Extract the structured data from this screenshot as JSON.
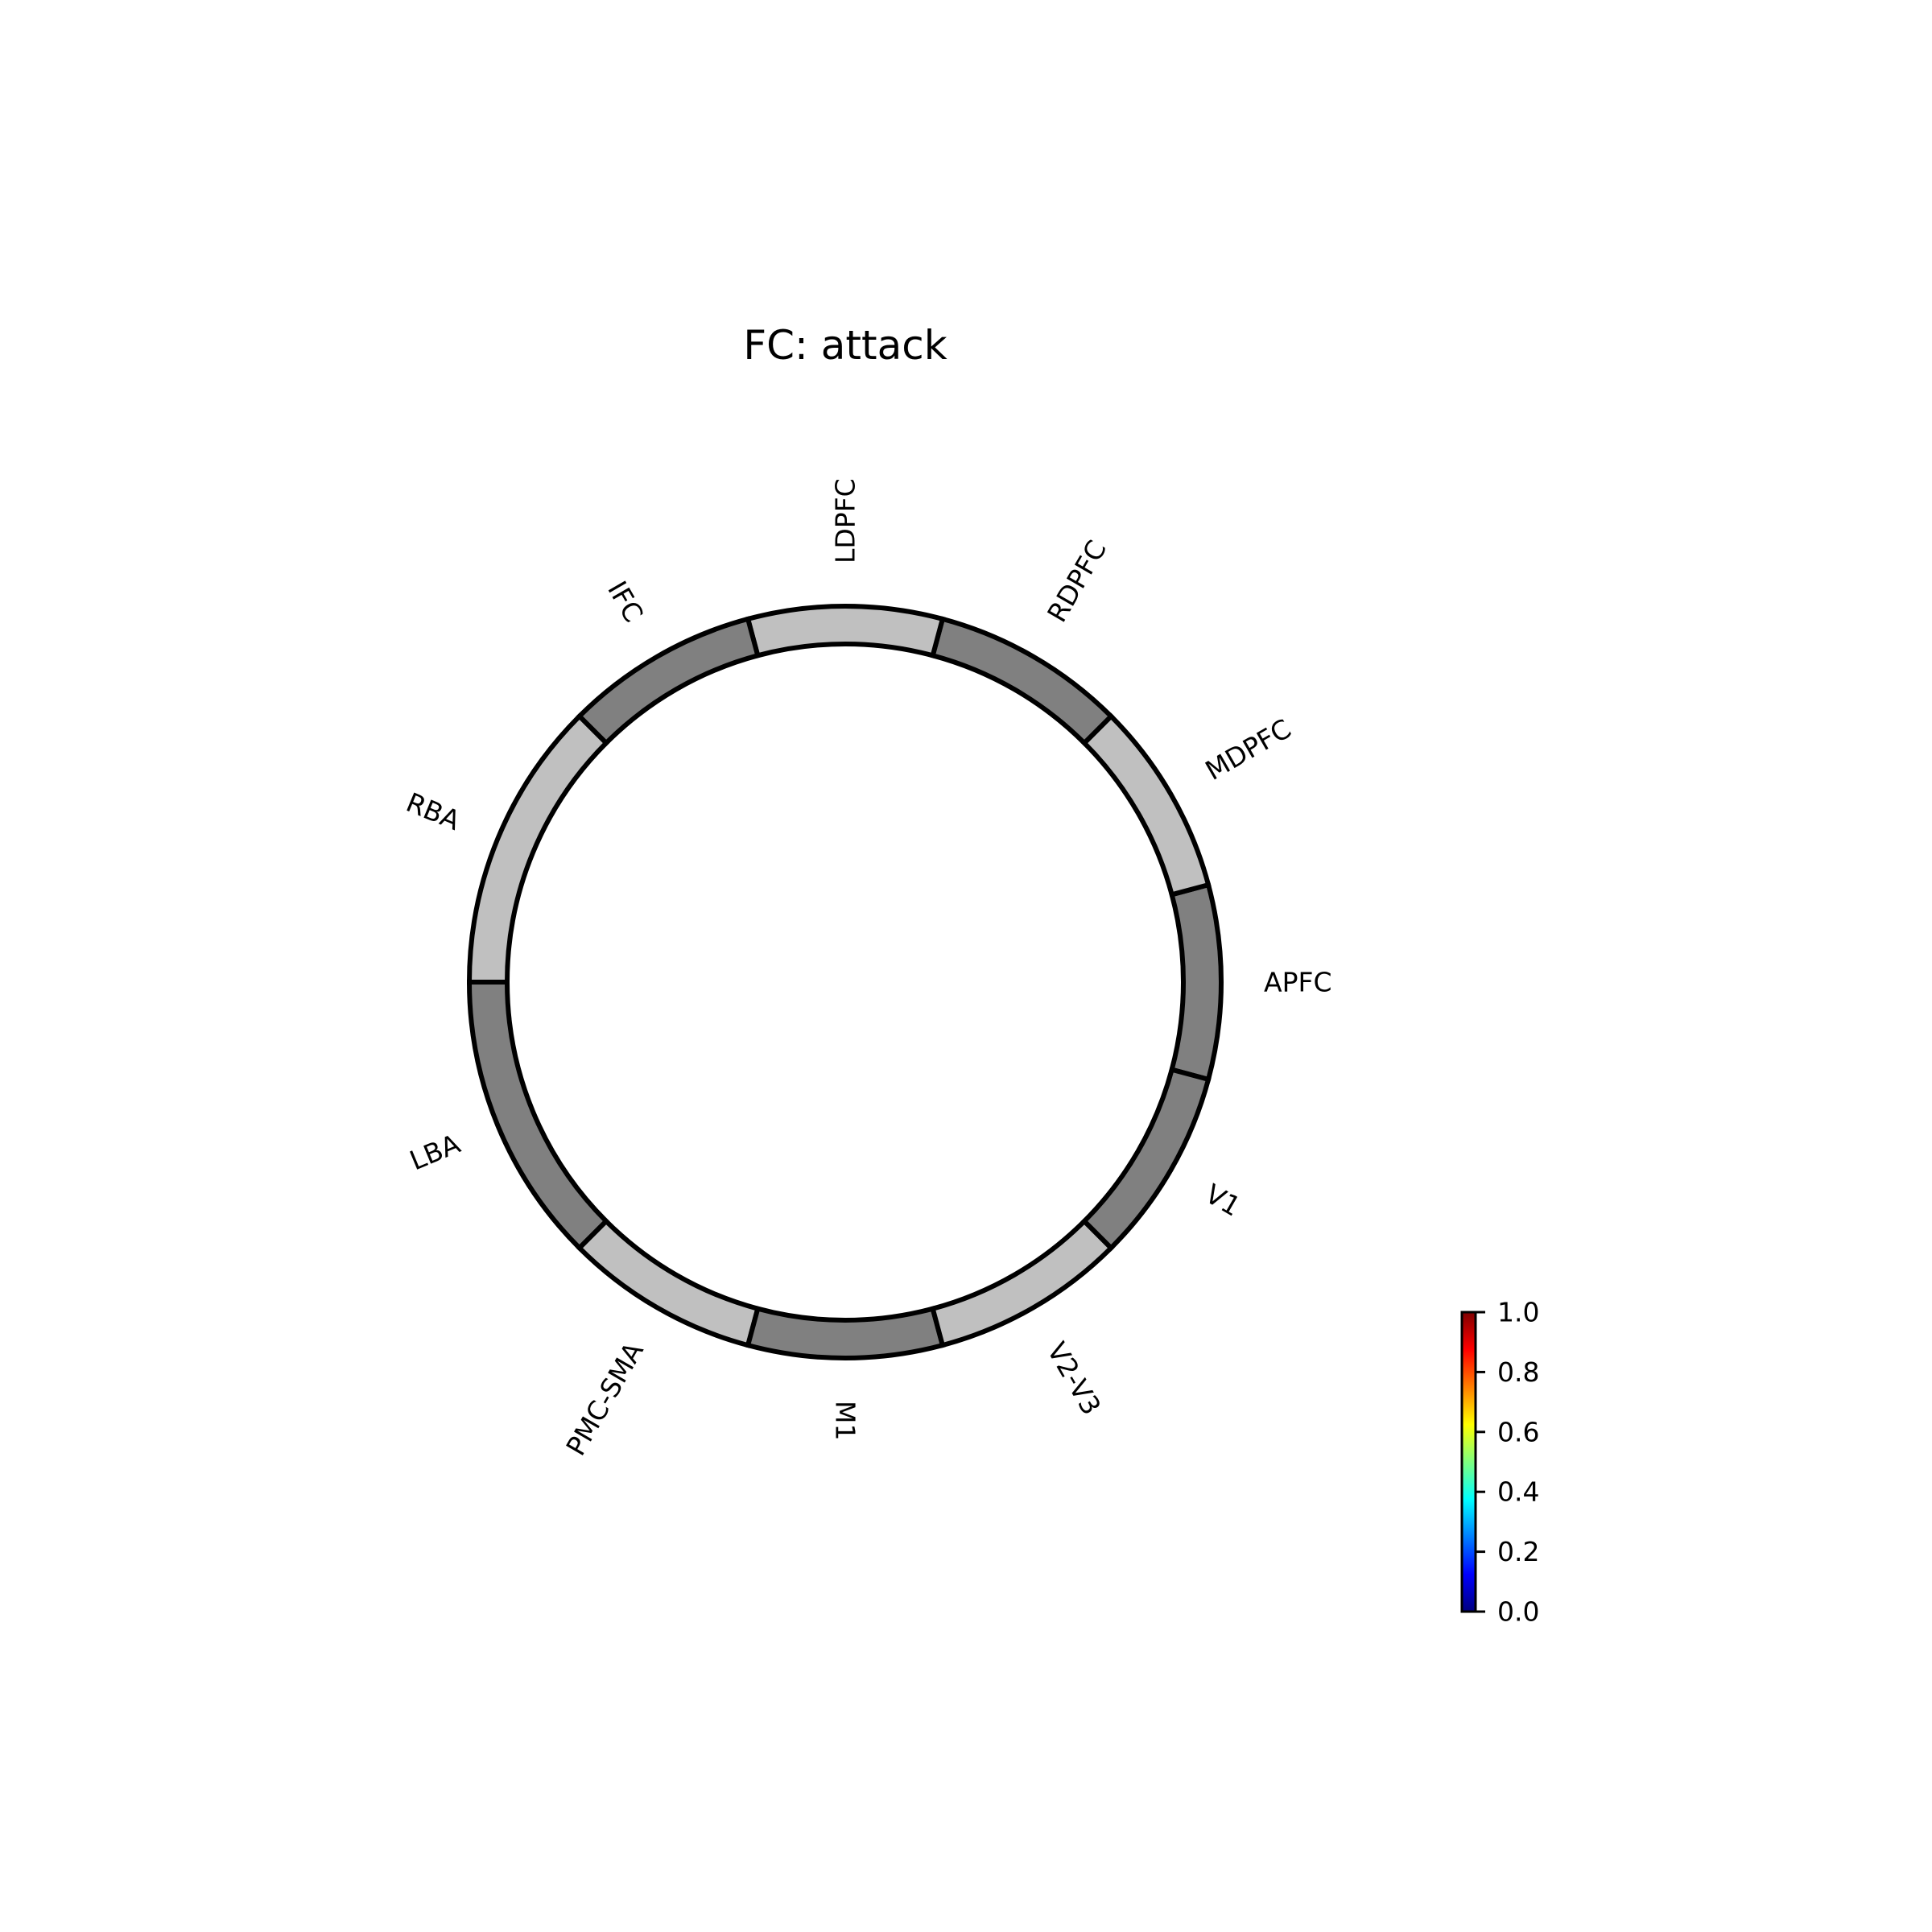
{
  "chart_data": {
    "type": "connectivity-circle",
    "title": "FC: attack",
    "nodes": [
      {
        "name": "APFC",
        "start_deg": -15,
        "end_deg": 15,
        "shade": "#808080"
      },
      {
        "name": "MDPFC",
        "start_deg": 15,
        "end_deg": 45,
        "shade": "#c0c0c0"
      },
      {
        "name": "RDPFC",
        "start_deg": 45,
        "end_deg": 75,
        "shade": "#808080"
      },
      {
        "name": "LDPFC",
        "start_deg": 75,
        "end_deg": 105,
        "shade": "#c0c0c0"
      },
      {
        "name": "IFC",
        "start_deg": 105,
        "end_deg": 135,
        "shade": "#808080"
      },
      {
        "name": "RBA",
        "start_deg": 135,
        "end_deg": 180,
        "shade": "#c0c0c0"
      },
      {
        "name": "LBA",
        "start_deg": 180,
        "end_deg": 225,
        "shade": "#808080"
      },
      {
        "name": "PMC-SMA",
        "start_deg": 225,
        "end_deg": 255,
        "shade": "#c0c0c0"
      },
      {
        "name": "M1",
        "start_deg": 255,
        "end_deg": 285,
        "shade": "#808080"
      },
      {
        "name": "V2-V3",
        "start_deg": 285,
        "end_deg": 315,
        "shade": "#c0c0c0"
      },
      {
        "name": "V1",
        "start_deg": 315,
        "end_deg": 345,
        "shade": "#808080"
      }
    ],
    "connections": [],
    "colorbar": {
      "colormap": "jet",
      "vmin": 0.0,
      "vmax": 1.0,
      "ticks": [
        "0.0",
        "0.2",
        "0.4",
        "0.6",
        "0.8",
        "1.0"
      ],
      "stops": [
        "#00007f",
        "#0000ff",
        "#007fff",
        "#00ffff",
        "#7fff7f",
        "#ffff00",
        "#ff7f00",
        "#ff0000",
        "#7f0000"
      ]
    }
  }
}
